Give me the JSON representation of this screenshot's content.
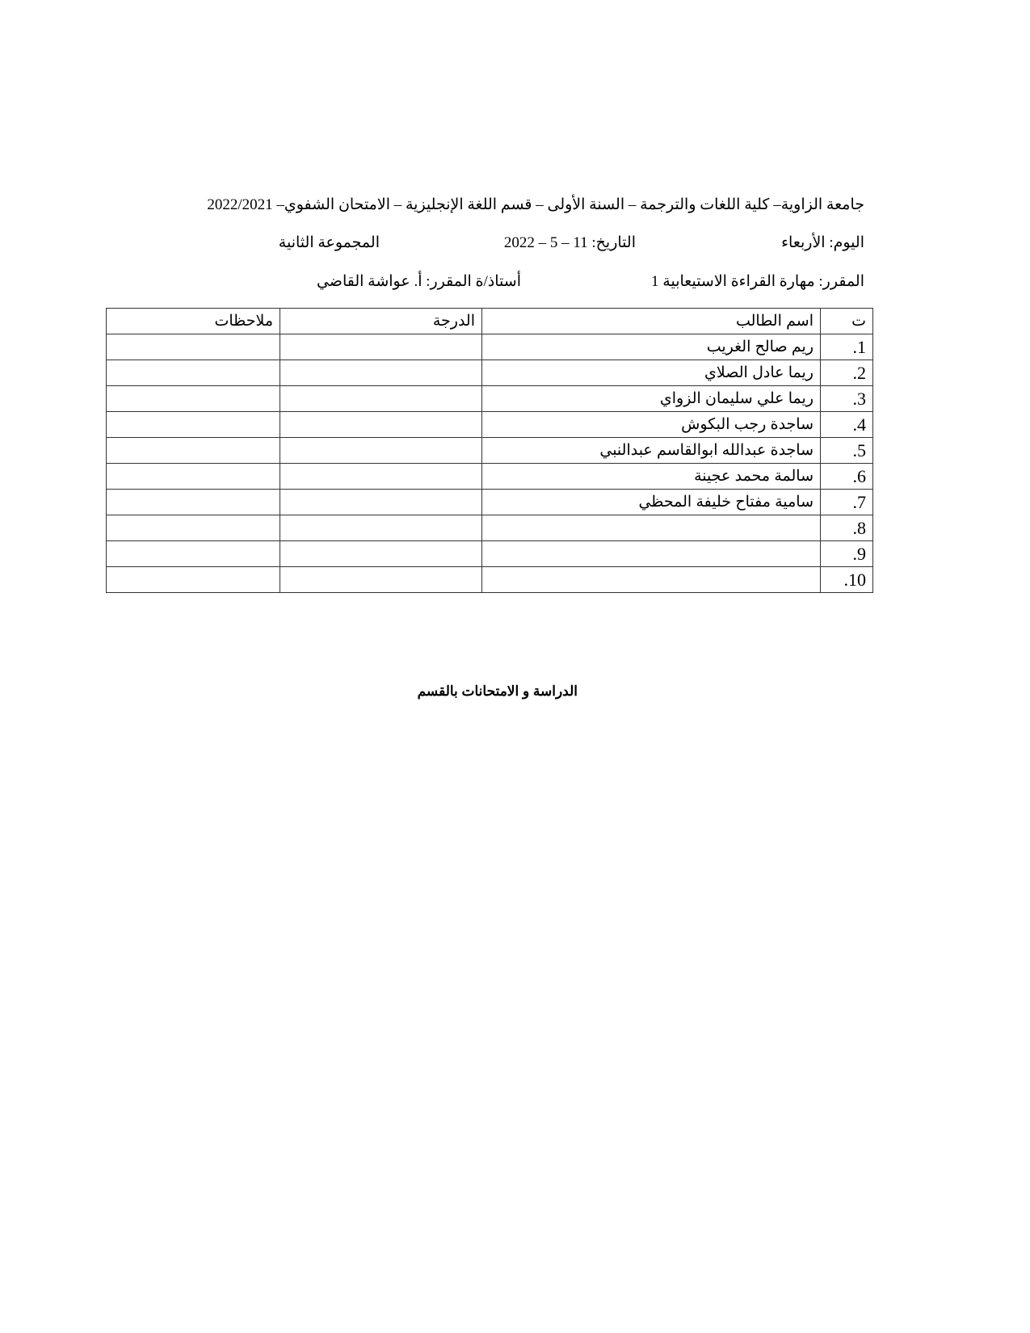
{
  "header": {
    "title": "جامعة الزاوية– كلية اللغات والترجمة – السنة الأولى – قسم اللغة الإنجليزية – الامتحان الشفوي– 2022/2021",
    "day": "اليوم: الأربعاء",
    "date": "التاريخ: 11 – 5 – 2022",
    "group": "المجموعة الثانية",
    "course": "المقرر: مهارة القراءة الاستيعابية 1",
    "instructor": "أستاذ/ة  المقرر:  أ. عواشة القاضي"
  },
  "table": {
    "headers": [
      "ت",
      "اسم الطالب",
      "الدرجة",
      "ملاحظات"
    ],
    "rows": [
      {
        "num": "1.",
        "name": "ريم صالح الغريب",
        "grade": "",
        "notes": ""
      },
      {
        "num": "2.",
        "name": "ريما عادل الصلاي",
        "grade": "",
        "notes": ""
      },
      {
        "num": "3.",
        "name": "ريما علي سليمان الزواي",
        "grade": "",
        "notes": ""
      },
      {
        "num": "4.",
        "name": "ساجدة رجب البكوش",
        "grade": "",
        "notes": ""
      },
      {
        "num": "5.",
        "name": "ساجدة عبدالله ابوالقاسم عبدالنبي",
        "grade": "",
        "notes": ""
      },
      {
        "num": "6.",
        "name": "سالمة محمد عجينة",
        "grade": "",
        "notes": ""
      },
      {
        "num": "7.",
        "name": "سامية مفتاح خليفة المحظي",
        "grade": "",
        "notes": ""
      },
      {
        "num": "8.",
        "name": "",
        "grade": "",
        "notes": ""
      },
      {
        "num": "9.",
        "name": "",
        "grade": "",
        "notes": ""
      },
      {
        "num": "10.",
        "name": "",
        "grade": "",
        "notes": ""
      }
    ]
  },
  "footer": "الدراسة و الامتحانات بالقسم"
}
